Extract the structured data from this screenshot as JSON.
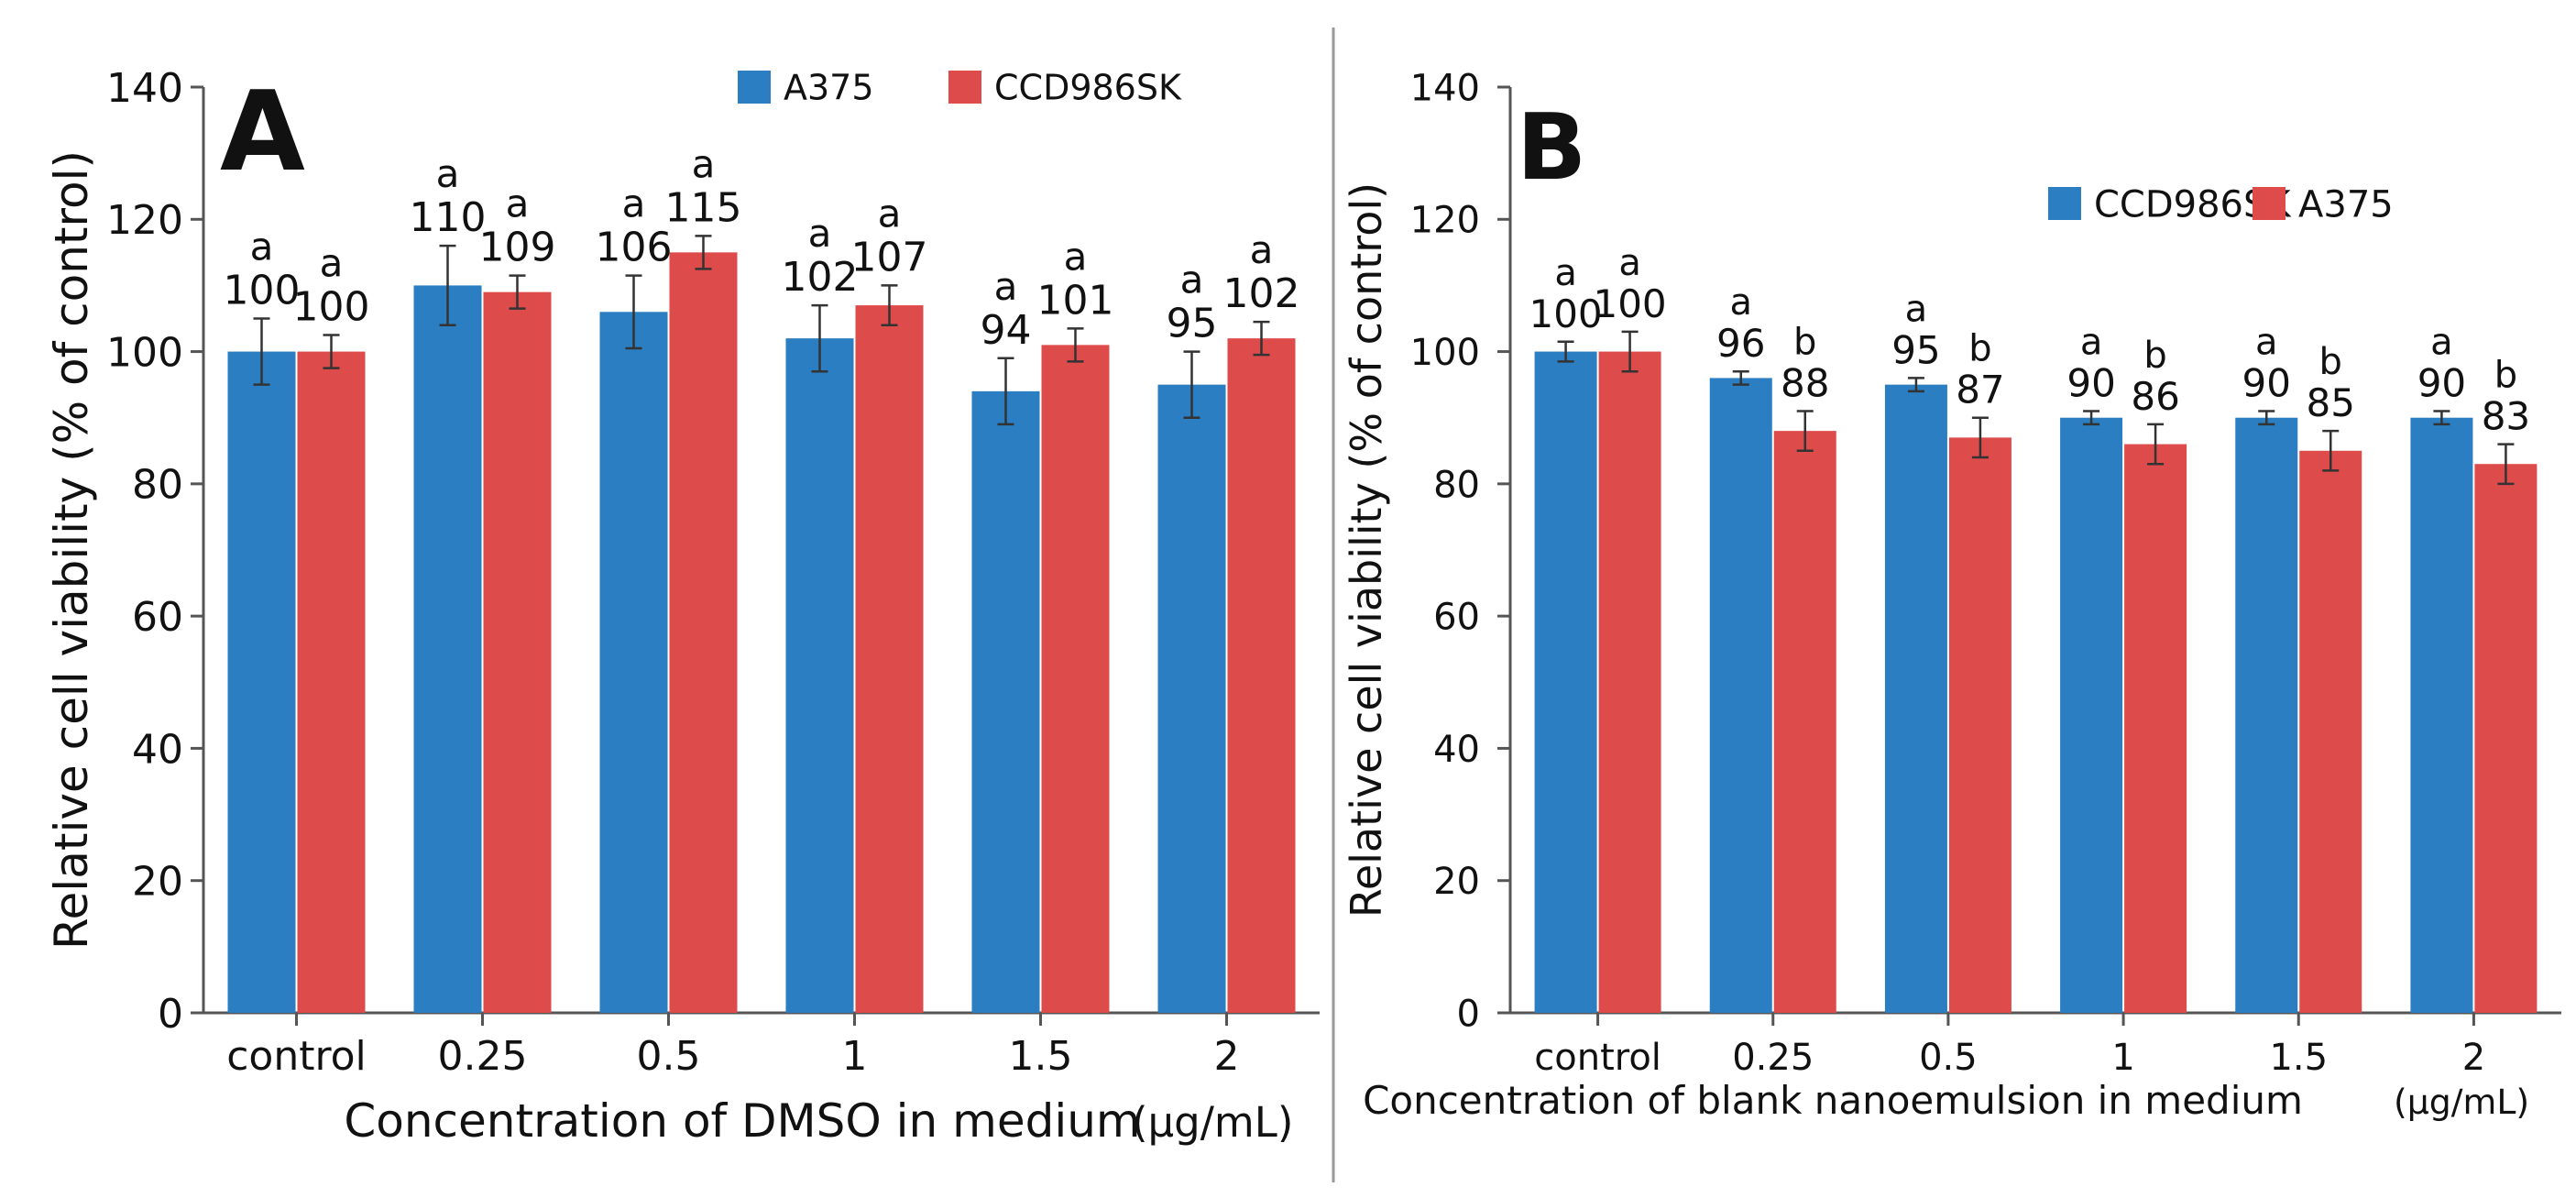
{
  "chart_data": [
    {
      "type": "bar",
      "panel_label": "A",
      "categories": [
        "control",
        "0.25",
        "0.5",
        "1",
        "1.5",
        "2"
      ],
      "series": [
        {
          "name": "A375",
          "color": "#2a7ec1",
          "values": [
            100,
            110,
            106,
            102,
            94,
            95
          ],
          "errors": [
            5,
            6,
            5.5,
            5,
            5,
            5
          ],
          "labels": [
            "100",
            "110",
            "106",
            "102",
            "94",
            "95"
          ],
          "letters": [
            "a",
            "a",
            "a",
            "a",
            "a",
            "a"
          ]
        },
        {
          "name": "CCD986SK",
          "color": "#de4b4b",
          "values": [
            100,
            109,
            115,
            107,
            101,
            102
          ],
          "errors": [
            2.5,
            2.5,
            2.5,
            3,
            2.5,
            2.5
          ],
          "labels": [
            "100",
            "109",
            "115",
            "107",
            "101",
            "102"
          ],
          "letters": [
            "a",
            "a",
            "a",
            "a",
            "a",
            "a"
          ]
        }
      ],
      "xlabel": "Concentration of DMSO in medium",
      "xunit": "(μg/mL)",
      "ylabel": "Relative cell viability (% of control)",
      "ylim": [
        0,
        140
      ],
      "yticks": [
        "0",
        "20",
        "40",
        "60",
        "80",
        "100",
        "120",
        "140"
      ],
      "legend_position": "top-right",
      "grid": false
    },
    {
      "type": "bar",
      "panel_label": "B",
      "categories": [
        "control",
        "0.25",
        "0.5",
        "1",
        "1.5",
        "2"
      ],
      "series": [
        {
          "name": "CCD986SK",
          "color": "#2a7ec1",
          "values": [
            100,
            96,
            95,
            90,
            90,
            90
          ],
          "errors": [
            1.5,
            1,
            1,
            1,
            1,
            1
          ],
          "labels": [
            "100",
            "96",
            "95",
            "90",
            "90",
            "90"
          ],
          "letters": [
            "a",
            "a",
            "a",
            "a",
            "a",
            "a"
          ]
        },
        {
          "name": "A375",
          "color": "#de4b4b",
          "values": [
            100,
            88,
            87,
            86,
            85,
            83
          ],
          "errors": [
            3,
            3,
            3,
            3,
            3,
            3
          ],
          "labels": [
            "100",
            "88",
            "87",
            "86",
            "85",
            "83"
          ],
          "letters": [
            "a",
            "b",
            "b",
            "b",
            "b",
            "b"
          ]
        }
      ],
      "xlabel": "Concentration of blank nanoemulsion in medium",
      "xunit": "(μg/mL)",
      "ylabel": "Relative cell viability (% of control)",
      "ylim": [
        0,
        140
      ],
      "yticks": [
        "0",
        "20",
        "40",
        "60",
        "80",
        "100",
        "120",
        "140"
      ],
      "legend_position": "top-right",
      "grid": false
    }
  ]
}
